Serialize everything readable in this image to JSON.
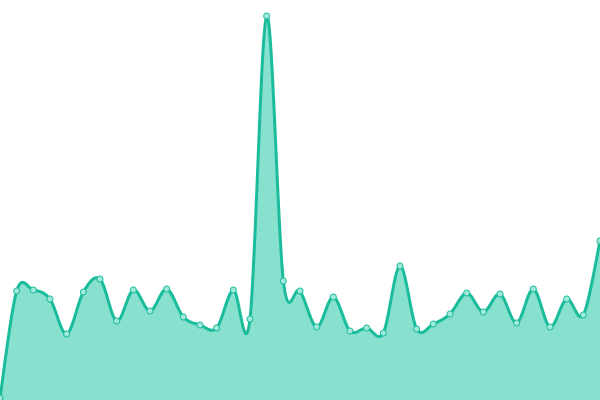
{
  "chart_data": {
    "type": "area",
    "title": "",
    "xlabel": "",
    "ylabel": "",
    "x": [
      0,
      1,
      2,
      3,
      4,
      5,
      6,
      7,
      8,
      9,
      10,
      11,
      12,
      13,
      14,
      15,
      16,
      17,
      18,
      19,
      20,
      21,
      22,
      23,
      24,
      25,
      26,
      27,
      28,
      29,
      30,
      31,
      32,
      33,
      34,
      35,
      36
    ],
    "values": [
      2,
      109,
      110,
      101,
      66,
      108,
      121,
      79,
      110,
      89,
      111,
      83,
      75,
      72,
      110,
      81,
      384,
      119,
      109,
      73,
      103,
      69,
      72,
      67,
      134,
      71,
      76,
      86,
      107,
      88,
      106,
      77,
      111,
      73,
      101,
      85,
      159
    ],
    "ylim": [
      0,
      400
    ],
    "grid": false,
    "axes_visible": false,
    "smooth": true,
    "colors": {
      "line": "#1abc9c",
      "fill": "#88e0cf",
      "point": "#a3e9db"
    }
  }
}
